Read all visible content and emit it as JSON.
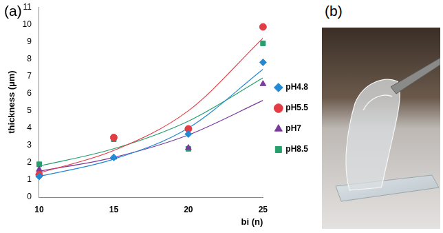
{
  "panel_labels": [
    "(a)",
    "(b)"
  ],
  "chart_data": {
    "type": "scatter",
    "xlabel": "bi (n)",
    "ylabel": "thickness (µm)",
    "x": [
      10,
      15,
      20,
      25
    ],
    "xlim": [
      10,
      25
    ],
    "xticks": [
      10,
      15,
      20,
      25
    ],
    "ylim": [
      0,
      11
    ],
    "yticks": [
      0,
      1,
      2,
      3,
      4,
      5,
      6,
      7,
      8,
      9,
      10,
      11
    ],
    "grid": false,
    "legend": "right",
    "series": [
      {
        "name": "pH4.8",
        "color": "#2389d3",
        "marker": "diamond",
        "values": [
          1.2,
          2.3,
          3.65,
          7.8
        ],
        "trend": [
          1.2,
          2.2,
          4.0,
          7.4
        ]
      },
      {
        "name": "pH5.5",
        "color": "#e23c44",
        "marker": "circle",
        "values": [
          1.3,
          3.45,
          3.95,
          9.85
        ],
        "trend": [
          1.4,
          2.7,
          5.0,
          9.2
        ]
      },
      {
        "name": "pH7",
        "color": "#7a3a9c",
        "marker": "triangle",
        "values": [
          1.6,
          2.3,
          2.85,
          6.55
        ],
        "trend": [
          1.5,
          2.3,
          3.6,
          5.6
        ]
      },
      {
        "name": "pH8.5",
        "color": "#23a06c",
        "marker": "square",
        "values": [
          1.9,
          3.35,
          2.8,
          8.9
        ],
        "trend": [
          1.8,
          2.8,
          4.4,
          6.9
        ]
      }
    ]
  }
}
